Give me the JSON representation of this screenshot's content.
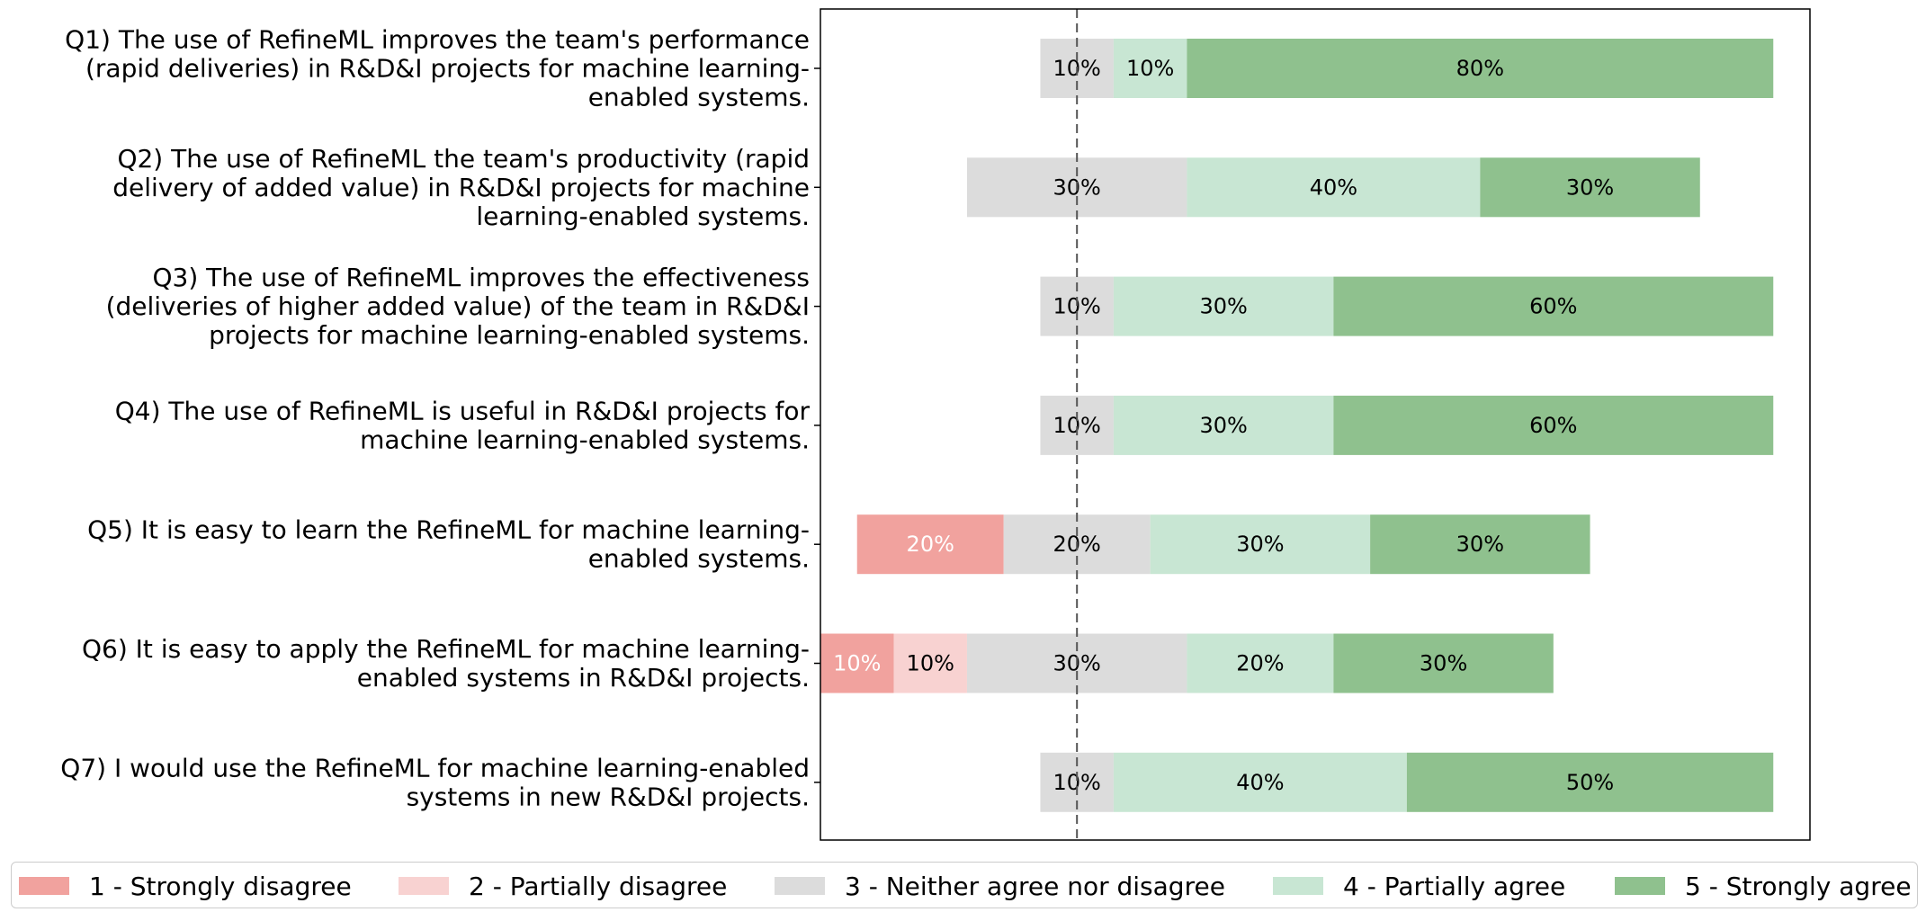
{
  "chart_data": {
    "type": "bar",
    "orientation": "horizontal",
    "stacked": true,
    "diverging": true,
    "value_unit": "%",
    "neutral_center": "3 - Neither agree nor disagree",
    "categories": [
      "Q1) The use of RefineML improves the team's performance (rapid deliveries) in R&D&I projects for machine learning-enabled systems.",
      "Q2) The use of RefineML the team's productivity (rapid delivery of added value) in R&D&I projects for machine learning-enabled systems.",
      "Q3) The use of RefineML improves the effectiveness (deliveries of higher added value) of the team in R&D&I projects for machine learning-enabled systems.",
      "Q4) The use of RefineML is useful in R&D&I projects for machine learning-enabled systems.",
      "Q5) It is easy to learn the RefineML for machine learning-enabled systems.",
      "Q6) It is easy to apply the RefineML for machine learning-enabled systems in R&D&I projects.",
      "Q7) I would use the RefineML for machine learning-enabled systems in new R&D&I projects."
    ],
    "category_lines": [
      [
        "Q1) The use of RefineML improves the team's performance",
        "(rapid deliveries) in R&D&I projects for machine learning-",
        "enabled systems."
      ],
      [
        "Q2) The use of RefineML the team's productivity (rapid",
        "delivery of added value) in R&D&I projects for machine",
        "learning-enabled systems."
      ],
      [
        "Q3) The use of RefineML improves the effectiveness",
        "(deliveries of higher added value) of the team in R&D&I",
        "projects for machine learning-enabled systems."
      ],
      [
        "Q4) The use of RefineML is useful in R&D&I projects for",
        "machine learning-enabled systems."
      ],
      [
        "Q5) It is easy to learn the RefineML for machine learning-",
        "enabled systems."
      ],
      [
        "Q6) It is easy to apply the RefineML for machine learning-",
        "enabled systems in R&D&I projects."
      ],
      [
        "Q7) I would use the RefineML for machine learning-enabled",
        "systems in new R&D&I projects."
      ]
    ],
    "series": [
      {
        "name": "1 - Strongly disagree",
        "color": "#f1a29e",
        "label_color": "#ffffff",
        "values": [
          0,
          0,
          0,
          0,
          20,
          10,
          0
        ]
      },
      {
        "name": "2 - Partially disagree",
        "color": "#f8d2d1",
        "label_color": "#000000",
        "values": [
          0,
          0,
          0,
          0,
          0,
          10,
          0
        ]
      },
      {
        "name": "3 - Neither agree nor disagree",
        "color": "#dcdcdc",
        "label_color": "#000000",
        "values": [
          10,
          30,
          10,
          10,
          20,
          30,
          10
        ]
      },
      {
        "name": "4 - Partially agree",
        "color": "#c8e6d3",
        "label_color": "#000000",
        "values": [
          10,
          40,
          30,
          30,
          30,
          20,
          40
        ]
      },
      {
        "name": "5 - Strongly agree",
        "color": "#8fc18e",
        "label_color": "#000000",
        "values": [
          80,
          30,
          60,
          60,
          30,
          30,
          50
        ]
      }
    ],
    "xlim": [
      -35,
      100
    ],
    "center_line_style": "dashed",
    "grid": false,
    "legend": "bottom",
    "title": "",
    "xlabel": "",
    "ylabel": ""
  }
}
